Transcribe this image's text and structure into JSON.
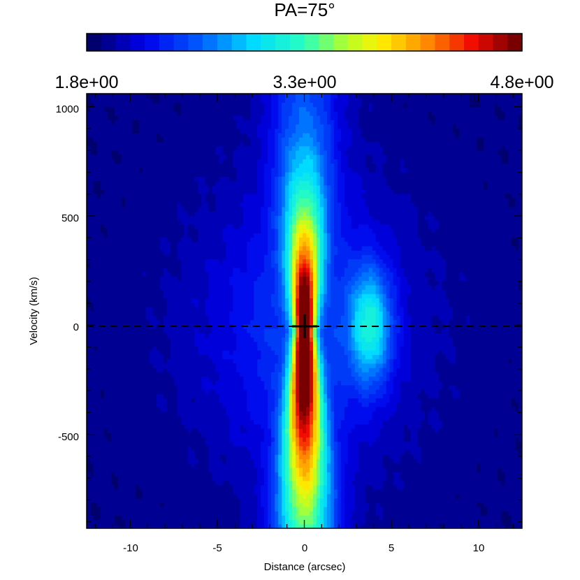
{
  "chart_data": {
    "type": "heatmap",
    "title": "PA=75°",
    "xlabel": "Distance (arcsec)",
    "ylabel": "Velocity (km/s)",
    "xlim": [
      -12.5,
      12.5
    ],
    "ylim": [
      -930,
      1060
    ],
    "x_ticks": [
      -10,
      -5,
      0,
      5,
      10
    ],
    "x_tick_labels": [
      "-10",
      "-5",
      "0",
      "5",
      "10"
    ],
    "y_ticks": [
      -500,
      0,
      500,
      1000
    ],
    "y_tick_labels": [
      "-500",
      "0",
      "500",
      "1000"
    ],
    "colorbar": {
      "min": 1.8,
      "max": 4.8,
      "labels": [
        "1.8e+00",
        "3.3e+00",
        "4.8e+00"
      ],
      "levels": 30,
      "colormap": "rainbow (dark blue to dark red)"
    },
    "components": [
      {
        "x": 0.0,
        "y": -30,
        "peak": 4.8
      },
      {
        "x": 3.8,
        "y": 0,
        "peak": 3.0
      }
    ],
    "reference_line_velocity": 0,
    "center_marker": {
      "x": 0,
      "y": 0
    },
    "grid": false
  }
}
